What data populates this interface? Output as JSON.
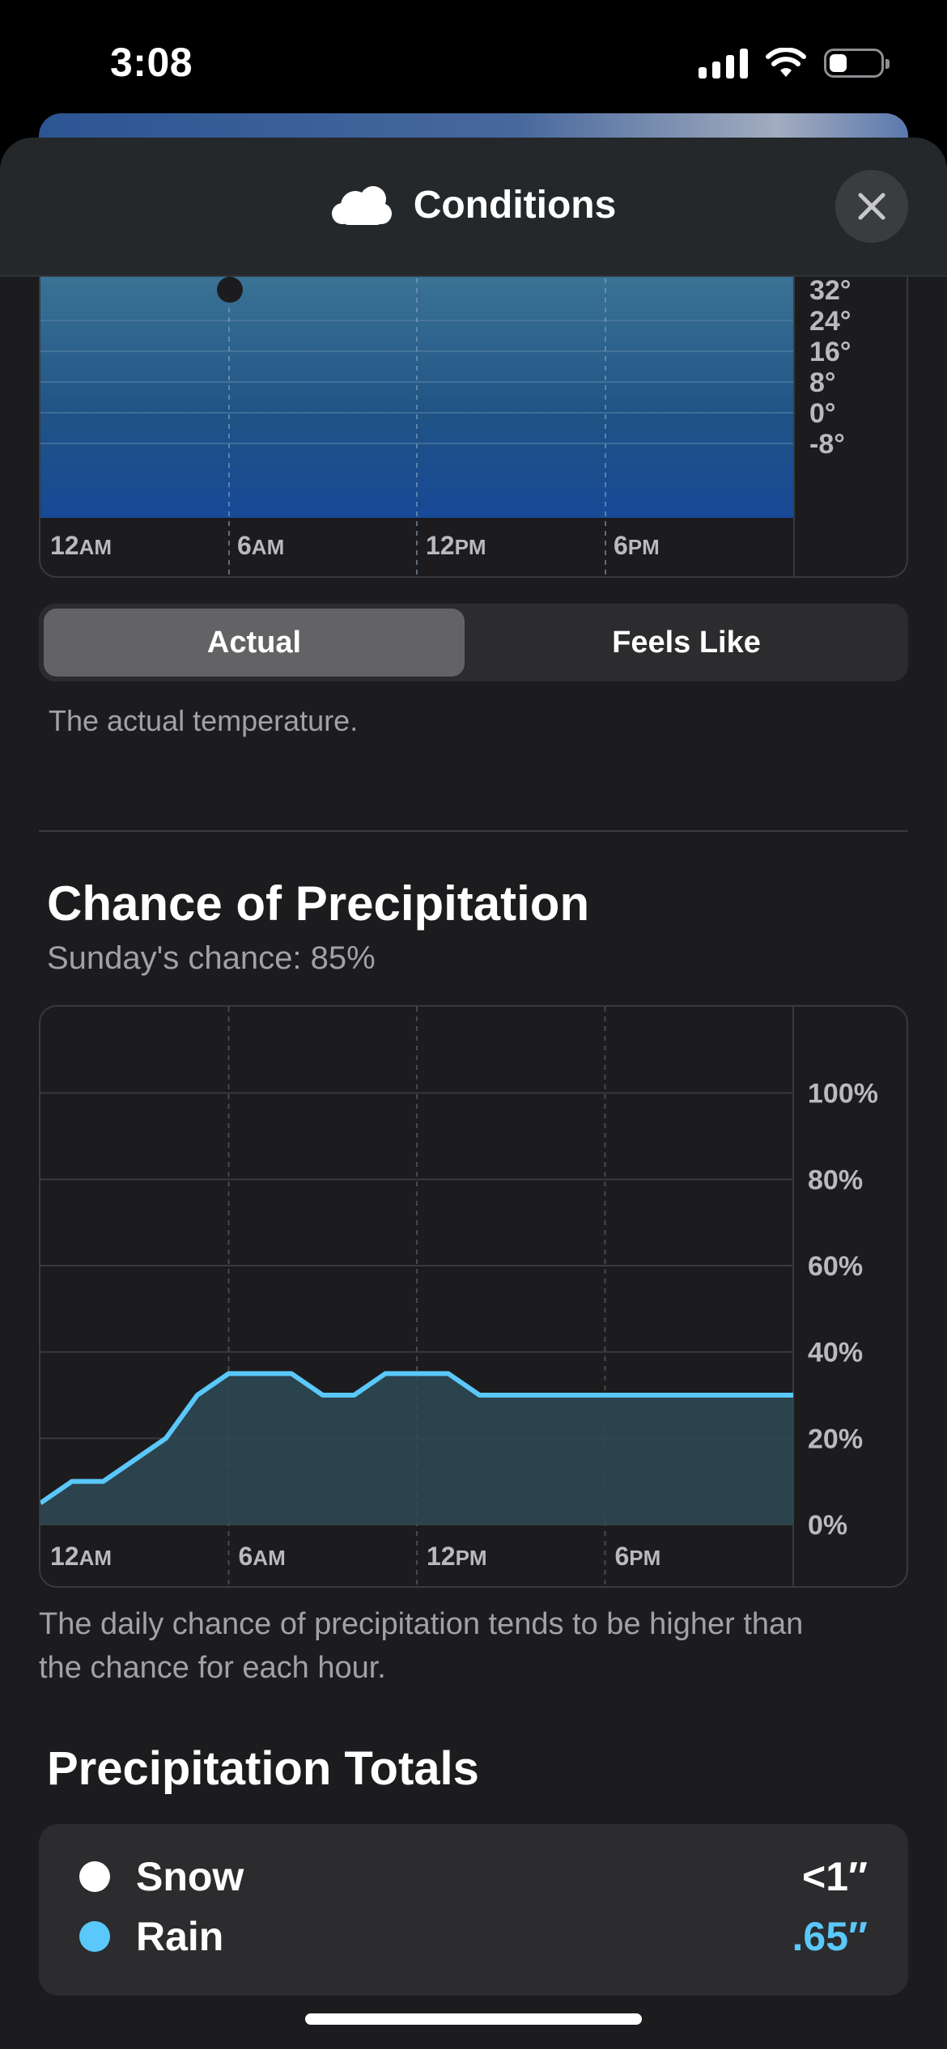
{
  "status_bar": {
    "time": "3:08",
    "battery_level": 0.36
  },
  "header": {
    "title": "Conditions",
    "icon": "cloud-icon",
    "close_icon": "close-icon"
  },
  "temperature_chart": {
    "y_ticks": [
      "32°",
      "24°",
      "16°",
      "8°",
      "0°",
      "-8°"
    ],
    "x_ticks": [
      {
        "num": "12",
        "ampm": "AM"
      },
      {
        "num": "6",
        "ampm": "AM"
      },
      {
        "num": "12",
        "ampm": "PM"
      },
      {
        "num": "6",
        "ampm": "PM"
      }
    ]
  },
  "segmented": {
    "actual": "Actual",
    "feels_like": "Feels Like",
    "selected": "Actual"
  },
  "temperature_caption": "The actual temperature.",
  "precipitation": {
    "title": "Chance of Precipitation",
    "subtitle": "Sunday's chance: 85%",
    "caption_line1": "The daily chance of precipitation tends to be higher than",
    "caption_line2": "the chance for each hour."
  },
  "chart_data": {
    "type": "area",
    "x": [
      "12AM",
      "1AM",
      "2AM",
      "3AM",
      "4AM",
      "5AM",
      "6AM",
      "7AM",
      "8AM",
      "9AM",
      "10AM",
      "11AM",
      "12PM",
      "1PM",
      "2PM",
      "3PM",
      "4PM",
      "5PM",
      "6PM",
      "7PM",
      "8PM",
      "9PM",
      "10PM",
      "11PM",
      "12AM"
    ],
    "values": [
      5,
      10,
      10,
      15,
      20,
      30,
      35,
      35,
      35,
      30,
      30,
      35,
      35,
      35,
      30,
      30,
      30,
      30,
      30,
      30,
      30,
      30,
      30,
      30,
      30
    ],
    "ylim": [
      0,
      120
    ],
    "y_ticks": [
      "0%",
      "20%",
      "40%",
      "60%",
      "80%",
      "100%"
    ],
    "x_ticks": [
      "12AM",
      "6AM",
      "12PM",
      "6PM"
    ],
    "grid": true,
    "line_color": "#5ac8fa",
    "fill_color": "#2e4a55"
  },
  "totals": {
    "title": "Precipitation Totals",
    "items": [
      {
        "name": "Snow",
        "value": "<1″",
        "color": "#ffffff"
      },
      {
        "name": "Rain",
        "value": ".65″",
        "color": "#5ac8fa"
      }
    ]
  }
}
